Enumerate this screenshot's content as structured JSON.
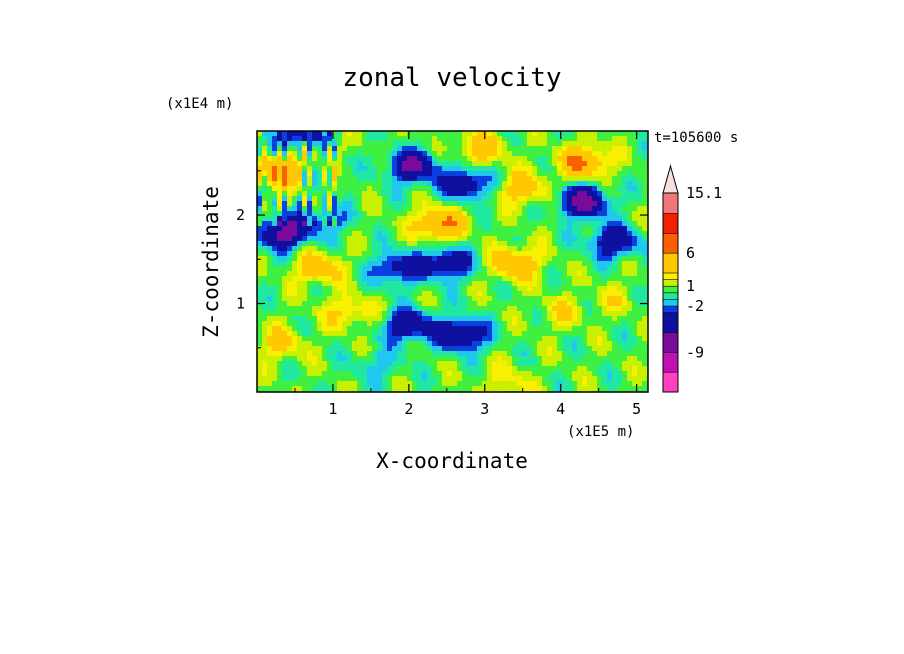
{
  "chart_data": {
    "type": "heatmap",
    "title": "zonal velocity",
    "xlabel": "X-coordinate",
    "ylabel": "Z-coordinate",
    "x_scale_label": "(x1E5 m)",
    "z_scale_label": "(x1E4 m)",
    "time_label": "t=105600 s",
    "xlim": [
      0,
      5.15
    ],
    "zlim": [
      0,
      2.95
    ],
    "x_ticks": [
      "1",
      "2",
      "3",
      "4",
      "5"
    ],
    "x_tick_values": [
      1,
      2,
      3,
      4,
      5
    ],
    "z_ticks": [
      "1",
      "2"
    ],
    "z_tick_values": [
      1,
      2
    ],
    "colorbar": {
      "labels": [
        "15.1",
        "6",
        "1",
        "-2",
        "-9"
      ],
      "label_values": [
        15.1,
        6,
        1,
        -2,
        -9
      ],
      "levels": [
        -15,
        -12,
        -9,
        -6,
        -3,
        -2,
        -1,
        0,
        1,
        2,
        3,
        6,
        9,
        12,
        15.1
      ],
      "colors": [
        "#ff40c0",
        "#c010b0",
        "#7a0a9a",
        "#1010a0",
        "#0a40e0",
        "#20c8f0",
        "#20e8a0",
        "#40f040",
        "#c8f000",
        "#f8f000",
        "#ffc800",
        "#f86000",
        "#f02000",
        "#f07878",
        "#f8b8b8"
      ],
      "extend_max": true
    },
    "features": [
      {
        "x": 2.05,
        "z": 2.55,
        "value": -7
      },
      {
        "x": 0.35,
        "z": 1.8,
        "value": -8
      },
      {
        "x": 4.3,
        "z": 2.15,
        "value": -8
      },
      {
        "x": 2.7,
        "z": 0.65,
        "value": -7
      },
      {
        "x": 2.75,
        "z": 2.35,
        "value": -6
      },
      {
        "x": 2.5,
        "z": 1.45,
        "value": -6
      },
      {
        "x": 4.7,
        "z": 1.7,
        "value": -6
      },
      {
        "x": 0.55,
        "z": 2.95,
        "value": -6
      },
      {
        "x": 2.0,
        "z": 0.75,
        "value": -6
      },
      {
        "x": 1.85,
        "z": 1.4,
        "value": -5
      },
      {
        "x": 0.9,
        "z": 1.95,
        "value": -3
      },
      {
        "x": 1.6,
        "z": 0.3,
        "value": -2
      },
      {
        "x": 2.4,
        "z": 1.9,
        "value": 6
      },
      {
        "x": 0.3,
        "z": 2.5,
        "value": 5
      },
      {
        "x": 4.3,
        "z": 2.6,
        "value": 6
      },
      {
        "x": 3.4,
        "z": 1.45,
        "value": 5
      },
      {
        "x": 0.8,
        "z": 1.4,
        "value": 4
      },
      {
        "x": 3.5,
        "z": 2.3,
        "value": 4
      },
      {
        "x": 2.95,
        "z": 2.75,
        "value": 4
      },
      {
        "x": 1.2,
        "z": 0.9,
        "value": 3
      },
      {
        "x": 4.0,
        "z": 0.9,
        "value": 2
      },
      {
        "x": 3.3,
        "z": 0.1,
        "value": 2
      },
      {
        "x": 0.3,
        "z": 0.55,
        "value": 3
      },
      {
        "x": 4.7,
        "z": 1.05,
        "value": 1.5
      }
    ]
  }
}
